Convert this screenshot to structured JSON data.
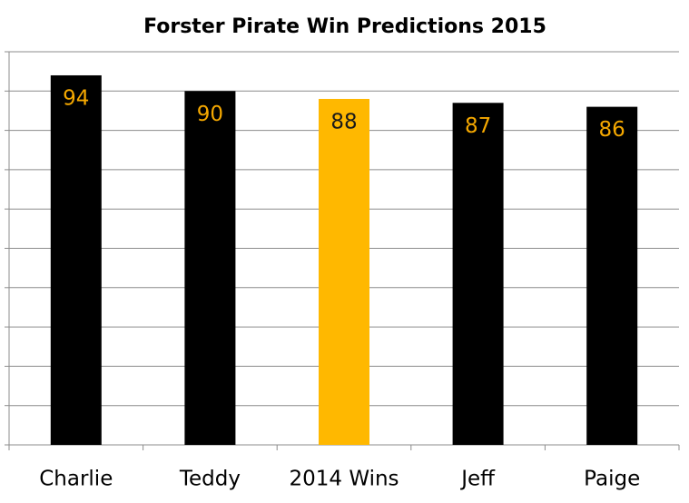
{
  "chart_data": {
    "type": "bar",
    "title": "Forster Pirate Win Predictions 2015",
    "categories": [
      "Charlie",
      "Teddy",
      "2014 Wins",
      "Jeff",
      "Paige"
    ],
    "values": [
      94,
      90,
      88,
      87,
      86
    ],
    "colors": [
      "#000000",
      "#000000",
      "#ffb800",
      "#000000",
      "#000000"
    ],
    "label_colors": [
      "#f5a800",
      "#f5a800",
      "#1a1a1a",
      "#f5a800",
      "#f5a800"
    ],
    "ylim": [
      0,
      100
    ],
    "yticks": [
      0,
      10,
      20,
      30,
      40,
      50,
      60,
      70,
      80,
      90,
      100
    ],
    "grid": true
  }
}
